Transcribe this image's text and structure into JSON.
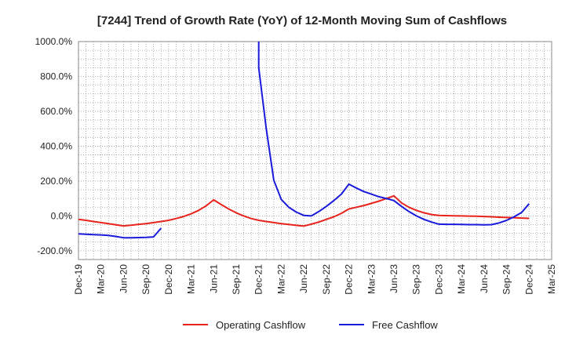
{
  "chart_data": {
    "type": "line",
    "title": "[7244]  Trend of Growth Rate (YoY) of 12-Month Moving Sum of Cashflows",
    "xlabel": "",
    "ylabel": "",
    "ylim": [
      -250,
      1000
    ],
    "y_ticks": [
      "1000.0%",
      "800.0%",
      "600.0%",
      "400.0%",
      "200.0%",
      "0.0%",
      "-200.0%"
    ],
    "y_tick_values": [
      1000,
      800,
      600,
      400,
      200,
      0,
      -200
    ],
    "x_ticks": [
      "Dec-19",
      "Mar-20",
      "Jun-20",
      "Sep-20",
      "Dec-20",
      "Mar-21",
      "Jun-21",
      "Sep-21",
      "Dec-21",
      "Mar-22",
      "Jun-22",
      "Sep-22",
      "Dec-22",
      "Mar-23",
      "Jun-23",
      "Sep-23",
      "Dec-23",
      "Mar-24",
      "Jun-24",
      "Sep-24",
      "Dec-24",
      "Mar-25"
    ],
    "x_month_range": [
      "2019-12",
      "2025-03"
    ],
    "grid": true,
    "legend_position": "bottom-center",
    "series": [
      {
        "name": "Operating Cashflow",
        "color": "#e8231c",
        "points": [
          [
            "2019-12",
            -20
          ],
          [
            "2020-01",
            -25
          ],
          [
            "2020-02",
            -32
          ],
          [
            "2020-03",
            -38
          ],
          [
            "2020-04",
            -44
          ],
          [
            "2020-05",
            -51
          ],
          [
            "2020-06",
            -57
          ],
          [
            "2020-07",
            -53
          ],
          [
            "2020-08",
            -48
          ],
          [
            "2020-09",
            -44
          ],
          [
            "2020-10",
            -38
          ],
          [
            "2020-11",
            -32
          ],
          [
            "2020-12",
            -25
          ],
          [
            "2021-01",
            -15
          ],
          [
            "2021-02",
            -3
          ],
          [
            "2021-03",
            12
          ],
          [
            "2021-04",
            32
          ],
          [
            "2021-05",
            58
          ],
          [
            "2021-06",
            92
          ],
          [
            "2021-07",
            65
          ],
          [
            "2021-08",
            40
          ],
          [
            "2021-09",
            18
          ],
          [
            "2021-10",
            0
          ],
          [
            "2021-11",
            -15
          ],
          [
            "2021-12",
            -25
          ],
          [
            "2022-01",
            -32
          ],
          [
            "2022-02",
            -38
          ],
          [
            "2022-03",
            -44
          ],
          [
            "2022-04",
            -49
          ],
          [
            "2022-05",
            -54
          ],
          [
            "2022-06",
            -58
          ],
          [
            "2022-07",
            -47
          ],
          [
            "2022-08",
            -35
          ],
          [
            "2022-09",
            -20
          ],
          [
            "2022-10",
            -5
          ],
          [
            "2022-11",
            15
          ],
          [
            "2022-12",
            40
          ],
          [
            "2023-01",
            50
          ],
          [
            "2023-02",
            60
          ],
          [
            "2023-03",
            72
          ],
          [
            "2023-04",
            85
          ],
          [
            "2023-05",
            100
          ],
          [
            "2023-06",
            115
          ],
          [
            "2023-07",
            75
          ],
          [
            "2023-08",
            50
          ],
          [
            "2023-09",
            32
          ],
          [
            "2023-10",
            18
          ],
          [
            "2023-11",
            8
          ],
          [
            "2023-12",
            3
          ],
          [
            "2024-01",
            2
          ],
          [
            "2024-02",
            1
          ],
          [
            "2024-03",
            0
          ],
          [
            "2024-04",
            -1
          ],
          [
            "2024-05",
            -2
          ],
          [
            "2024-06",
            -3
          ],
          [
            "2024-07",
            -5
          ],
          [
            "2024-08",
            -7
          ],
          [
            "2024-09",
            -9
          ],
          [
            "2024-10",
            -10
          ],
          [
            "2024-11",
            -12
          ],
          [
            "2024-12",
            -14
          ]
        ]
      },
      {
        "name": "Free Cashflow",
        "color": "#1a1adb",
        "segments": [
          [
            [
              "2019-12",
              -103
            ],
            [
              "2020-01",
              -105
            ],
            [
              "2020-02",
              -107
            ],
            [
              "2020-03",
              -109
            ],
            [
              "2020-04",
              -112
            ],
            [
              "2020-05",
              -118
            ],
            [
              "2020-06",
              -125
            ],
            [
              "2020-07",
              -125
            ],
            [
              "2020-08",
              -124
            ],
            [
              "2020-09",
              -123
            ],
            [
              "2020-10",
              -120
            ],
            [
              "2020-11",
              -70
            ]
          ],
          [
            [
              "2021-12",
              1100
            ],
            [
              "2021-12",
              850
            ],
            [
              "2022-01",
              500
            ],
            [
              "2022-02",
              205
            ],
            [
              "2022-03",
              95
            ],
            [
              "2022-04",
              50
            ],
            [
              "2022-05",
              22
            ],
            [
              "2022-06",
              3
            ],
            [
              "2022-07",
              0
            ],
            [
              "2022-08",
              25
            ],
            [
              "2022-09",
              55
            ],
            [
              "2022-10",
              88
            ],
            [
              "2022-11",
              125
            ],
            [
              "2022-12",
              182
            ],
            [
              "2023-01",
              160
            ],
            [
              "2023-02",
              140
            ],
            [
              "2023-03",
              125
            ],
            [
              "2023-04",
              110
            ],
            [
              "2023-05",
              100
            ],
            [
              "2023-06",
              88
            ],
            [
              "2023-07",
              55
            ],
            [
              "2023-08",
              25
            ],
            [
              "2023-09",
              0
            ],
            [
              "2023-10",
              -20
            ],
            [
              "2023-11",
              -35
            ],
            [
              "2023-12",
              -47
            ],
            [
              "2024-01",
              -48
            ],
            [
              "2024-02",
              -48
            ],
            [
              "2024-03",
              -49
            ],
            [
              "2024-04",
              -50
            ],
            [
              "2024-05",
              -50
            ],
            [
              "2024-06",
              -51
            ],
            [
              "2024-07",
              -50
            ],
            [
              "2024-08",
              -40
            ],
            [
              "2024-09",
              -25
            ],
            [
              "2024-10",
              -5
            ],
            [
              "2024-11",
              20
            ],
            [
              "2024-12",
              70
            ]
          ]
        ]
      }
    ]
  }
}
